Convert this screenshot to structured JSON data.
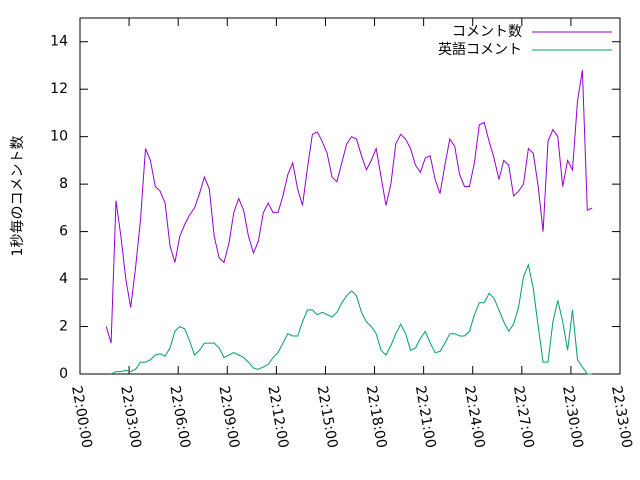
{
  "chart_data": {
    "type": "line",
    "y_label": "1秒毎のコメント数",
    "x": [
      "22:01:36",
      "22:01:54",
      "22:02:12",
      "22:02:30",
      "22:02:48",
      "22:03:06",
      "22:03:24",
      "22:03:42",
      "22:04:00",
      "22:04:18",
      "22:04:36",
      "22:04:54",
      "22:05:12",
      "22:05:30",
      "22:05:48",
      "22:06:06",
      "22:06:24",
      "22:06:42",
      "22:07:00",
      "22:07:18",
      "22:07:36",
      "22:07:54",
      "22:08:12",
      "22:08:30",
      "22:08:48",
      "22:09:06",
      "22:09:24",
      "22:09:42",
      "22:10:00",
      "22:10:18",
      "22:10:36",
      "22:10:54",
      "22:11:12",
      "22:11:30",
      "22:11:48",
      "22:12:06",
      "22:12:24",
      "22:12:42",
      "22:13:00",
      "22:13:18",
      "22:13:36",
      "22:13:54",
      "22:14:12",
      "22:14:30",
      "22:14:48",
      "22:15:06",
      "22:15:24",
      "22:15:42",
      "22:16:00",
      "22:16:18",
      "22:16:36",
      "22:16:54",
      "22:17:12",
      "22:17:30",
      "22:17:48",
      "22:18:06",
      "22:18:24",
      "22:18:42",
      "22:19:00",
      "22:19:18",
      "22:19:36",
      "22:19:54",
      "22:20:12",
      "22:20:30",
      "22:20:48",
      "22:21:06",
      "22:21:24",
      "22:21:42",
      "22:22:00",
      "22:22:18",
      "22:22:36",
      "22:22:54",
      "22:23:12",
      "22:23:30",
      "22:23:48",
      "22:24:06",
      "22:24:24",
      "22:24:42",
      "22:25:00",
      "22:25:18",
      "22:25:36",
      "22:25:54",
      "22:26:12",
      "22:26:30",
      "22:26:48",
      "22:27:06",
      "22:27:24",
      "22:27:42",
      "22:28:00",
      "22:28:18",
      "22:28:36",
      "22:28:54",
      "22:29:12",
      "22:29:30",
      "22:29:48",
      "22:30:06",
      "22:30:24",
      "22:30:42",
      "22:31:00",
      "22:31:18"
    ],
    "series": [
      {
        "name": "コメント数",
        "color": "#9400d3",
        "values": [
          2.0,
          1.3,
          7.3,
          5.8,
          4.0,
          2.8,
          4.5,
          6.5,
          9.5,
          9.0,
          7.9,
          7.7,
          7.2,
          5.4,
          4.7,
          5.8,
          6.3,
          6.7,
          7.0,
          7.6,
          8.3,
          7.8,
          5.8,
          4.9,
          4.7,
          5.5,
          6.8,
          7.4,
          6.9,
          5.8,
          5.1,
          5.6,
          6.8,
          7.2,
          6.8,
          6.8,
          7.5,
          8.4,
          8.9,
          7.8,
          7.1,
          8.7,
          10.1,
          10.2,
          9.8,
          9.3,
          8.3,
          8.1,
          8.9,
          9.7,
          10.0,
          9.9,
          9.2,
          8.6,
          9.0,
          9.5,
          8.3,
          7.1,
          8.0,
          9.7,
          10.1,
          9.9,
          9.5,
          8.8,
          8.5,
          9.1,
          9.2,
          8.2,
          7.6,
          8.8,
          9.9,
          9.6,
          8.4,
          7.9,
          7.9,
          8.9,
          10.5,
          10.6,
          9.8,
          9.1,
          8.2,
          9.0,
          8.8,
          7.5,
          7.7,
          8.0,
          9.5,
          9.3,
          7.9,
          6.0,
          9.8,
          10.3,
          10.0,
          7.9,
          9.0,
          8.6,
          11.5,
          12.8,
          6.9,
          7.0
        ]
      },
      {
        "name": "英語コメント",
        "color": "#009e73",
        "values": [
          null,
          0.0,
          0.1,
          0.1,
          0.15,
          0.1,
          0.2,
          0.5,
          0.5,
          0.6,
          0.8,
          0.85,
          0.75,
          1.1,
          1.8,
          2.0,
          1.9,
          1.4,
          0.8,
          1.0,
          1.3,
          1.3,
          1.3,
          1.1,
          0.7,
          0.8,
          0.9,
          0.8,
          0.7,
          0.5,
          0.25,
          0.2,
          0.3,
          0.4,
          0.7,
          0.9,
          1.3,
          1.7,
          1.6,
          1.6,
          2.2,
          2.7,
          2.7,
          2.5,
          2.6,
          2.5,
          2.4,
          2.6,
          3.0,
          3.3,
          3.5,
          3.3,
          2.6,
          2.2,
          2.0,
          1.7,
          1.0,
          0.8,
          1.2,
          1.7,
          2.1,
          1.7,
          1.0,
          1.1,
          1.5,
          1.8,
          1.3,
          0.9,
          0.95,
          1.3,
          1.7,
          1.7,
          1.6,
          1.6,
          1.8,
          2.5,
          3.0,
          3.0,
          3.4,
          3.2,
          2.7,
          2.2,
          1.8,
          2.1,
          2.8,
          4.1,
          4.6,
          3.6,
          2.0,
          0.5,
          0.5,
          2.2,
          3.1,
          2.2,
          1.0,
          2.7,
          0.6,
          0.3,
          0.0,
          0.0
        ]
      }
    ],
    "xlim": [
      "22:00:00",
      "22:33:00"
    ],
    "xticks": [
      "22:00:00",
      "22:03:00",
      "22:06:00",
      "22:09:00",
      "22:12:00",
      "22:15:00",
      "22:18:00",
      "22:21:00",
      "22:24:00",
      "22:27:00",
      "22:30:00",
      "22:33:00"
    ],
    "ylim": [
      0,
      15
    ],
    "yticks": [
      0,
      2,
      4,
      6,
      8,
      10,
      12,
      14
    ],
    "legend": "top-right"
  }
}
